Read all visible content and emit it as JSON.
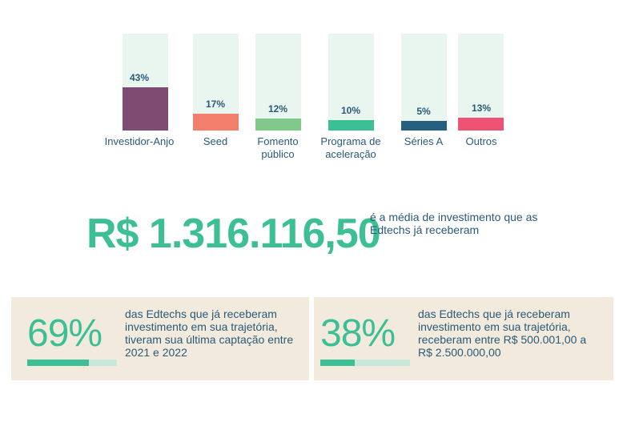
{
  "chart_data": {
    "type": "bar",
    "categories": [
      "Investidor-Anjo",
      "Seed",
      "Fomento público",
      "Programa de aceleração",
      "Séries A",
      "Outros"
    ],
    "category_lines": [
      [
        "Investidor-Anjo"
      ],
      [
        "Seed"
      ],
      [
        "Fomento",
        "público"
      ],
      [
        "Programa de",
        "aceleração"
      ],
      [
        "Séries A"
      ],
      [
        "Outros"
      ]
    ],
    "values": [
      43,
      17,
      12,
      10,
      5,
      13
    ],
    "value_labels": [
      "43%",
      "17%",
      "12%",
      "10%",
      "5%",
      "13%"
    ],
    "ylim": [
      0,
      100
    ],
    "colors": [
      "#7e4c72",
      "#f37e6b",
      "#80c98a",
      "#3dbf95",
      "#275f80",
      "#ee5375"
    ],
    "track_color": "#e9f5ef",
    "label_color": "#2a5a78",
    "grid": false,
    "legend": "none"
  },
  "highlight": {
    "value": "R$ 1.316.116,50",
    "description": "é a média de investimento que as Edtechs já receberam"
  },
  "cards": [
    {
      "percent_label": "69%",
      "percent": 69,
      "text": "das Edtechs que já receberam investimento em sua trajetória, tiveram sua última captação entre 2021 e 2022"
    },
    {
      "percent_label": "38%",
      "percent": 38,
      "text": "das Edtechs que já receberam investimento em sua trajetória, receberam entre R$ 500.001,00 a R$ 2.500.000,00"
    }
  ],
  "colors": {
    "accent": "#3dbf95",
    "text": "#2a5a78",
    "card_bg": "#f2ebdd",
    "progress_track": "#c9e8dc"
  }
}
